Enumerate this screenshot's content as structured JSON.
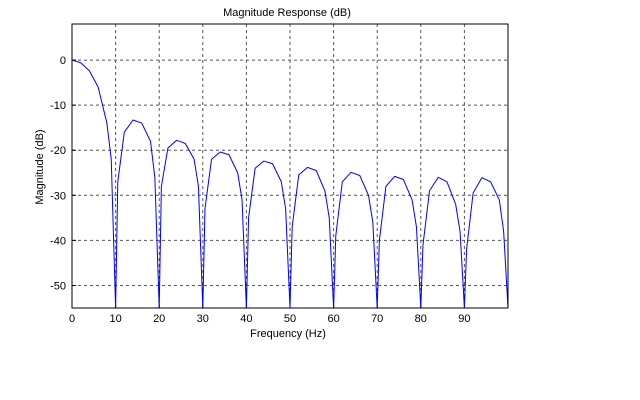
{
  "chart_data": {
    "type": "line",
    "title": "Magnitude Response (dB)",
    "xlabel": "Frequency (Hz)",
    "ylabel": "Magnitude (dB)",
    "xlim": [
      0,
      100
    ],
    "ylim": [
      -55,
      8
    ],
    "x_ticks": [
      0,
      10,
      20,
      30,
      40,
      50,
      60,
      70,
      80,
      90
    ],
    "y_ticks": [
      0,
      -10,
      -20,
      -30,
      -40,
      -50
    ],
    "x_tick_labels": [
      "0",
      "10",
      "20",
      "30",
      "40",
      "50",
      "60",
      "70",
      "80",
      "90"
    ],
    "y_tick_labels": [
      "0",
      "-10",
      "-20",
      "-30",
      "-40",
      "-50"
    ],
    "grid": true,
    "legend": "none",
    "colors": {
      "line": "#0000ff",
      "grid": "#555555",
      "axes": "#000000"
    },
    "series": [
      {
        "x": [
          0,
          2,
          4,
          6,
          8,
          9,
          10,
          10.5,
          12,
          14,
          16,
          18,
          19,
          20,
          20.5,
          22,
          24,
          26,
          28,
          29,
          30,
          30.5,
          32,
          34,
          36,
          38,
          39,
          40,
          40.5,
          42,
          44,
          46,
          48,
          49,
          50,
          50.5,
          52,
          54,
          56,
          58,
          59,
          60,
          60.5,
          62,
          64,
          66,
          68,
          69,
          70,
          70.5,
          72,
          74,
          76,
          78,
          79,
          80,
          80.5,
          82,
          84,
          86,
          88,
          89,
          90,
          90.5,
          92,
          94,
          96,
          98,
          99,
          100
        ],
        "values": [
          0,
          -0.6,
          -2.4,
          -6,
          -14,
          -22,
          -55,
          -27,
          -16,
          -13.3,
          -14,
          -18,
          -26,
          -55,
          -28,
          -19.5,
          -17.8,
          -18.5,
          -22,
          -28,
          -55,
          -33,
          -22,
          -20.4,
          -21,
          -25,
          -31,
          -55,
          -35,
          -24,
          -22.4,
          -23,
          -27,
          -33,
          -55,
          -37,
          -25.5,
          -23.8,
          -24.5,
          -29,
          -35,
          -55,
          -39,
          -27,
          -24.9,
          -25.6,
          -30,
          -36,
          -55,
          -40,
          -28,
          -25.8,
          -26.5,
          -31,
          -37,
          -55,
          -41,
          -29,
          -26,
          -27,
          -32,
          -38,
          -55,
          -42,
          -29.5,
          -26.1,
          -27,
          -31,
          -38,
          -55
        ]
      }
    ]
  }
}
